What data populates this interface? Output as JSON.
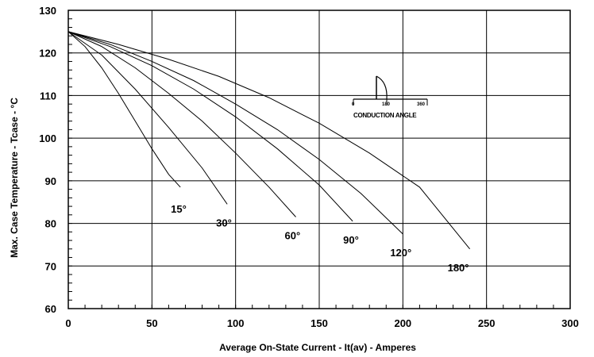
{
  "chart_data": {
    "type": "line",
    "xlabel": "Average On-State Current - It(av) - Amperes",
    "ylabel": "Max. Case Temperature - Tcase - °C",
    "xlim": [
      0,
      300
    ],
    "ylim": [
      60,
      130
    ],
    "x_ticks": [
      0,
      50,
      100,
      150,
      200,
      250,
      300
    ],
    "y_ticks": [
      60,
      70,
      80,
      90,
      100,
      110,
      120,
      130
    ],
    "grid": true,
    "series": [
      {
        "name": "15°",
        "x": [
          0,
          10,
          20,
          30,
          40,
          50,
          60,
          67
        ],
        "y": [
          125,
          121.5,
          116.5,
          110.5,
          104,
          97.5,
          91.5,
          88.5
        ]
      },
      {
        "name": "30°",
        "x": [
          0,
          20,
          40,
          60,
          80,
          95
        ],
        "y": [
          125,
          119.5,
          111.5,
          102.5,
          93,
          84.5
        ]
      },
      {
        "name": "60°",
        "x": [
          0,
          20,
          40,
          60,
          80,
          100,
          120,
          136
        ],
        "y": [
          125,
          121.5,
          116.5,
          110.5,
          104,
          96.5,
          88.5,
          81.5
        ]
      },
      {
        "name": "90°",
        "x": [
          0,
          25,
          50,
          75,
          100,
          125,
          150,
          170
        ],
        "y": [
          125,
          121.5,
          117,
          111.5,
          105,
          97.5,
          89,
          80.5
        ]
      },
      {
        "name": "120°",
        "x": [
          0,
          25,
          50,
          75,
          100,
          125,
          150,
          175,
          200
        ],
        "y": [
          125,
          122,
          118,
          113.5,
          108,
          102,
          95,
          87,
          77.5
        ]
      },
      {
        "name": "180°",
        "x": [
          0,
          30,
          60,
          90,
          120,
          150,
          180,
          210,
          240
        ],
        "y": [
          125,
          122,
          118.5,
          114.5,
          109.5,
          103.5,
          96.5,
          88.5,
          74
        ]
      }
    ],
    "annotations": {
      "inset_caption": "CONDUCTION ANGLE",
      "inset_ticks": [
        "0",
        "180",
        "360"
      ]
    }
  }
}
